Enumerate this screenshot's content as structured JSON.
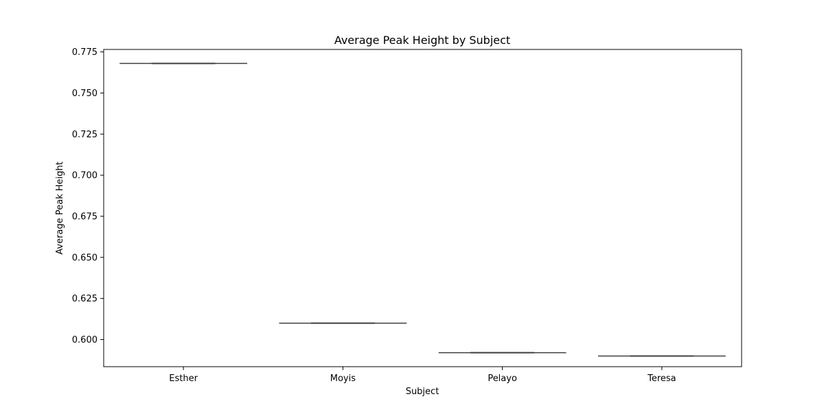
{
  "chart_data": {
    "type": "box",
    "title": "Average Peak Height by Subject",
    "xlabel": "Subject",
    "ylabel": "Average Peak Height",
    "categories": [
      "Esther",
      "Moyis",
      "Pelayo",
      "Teresa"
    ],
    "values": [
      0.768,
      0.61,
      0.592,
      0.59
    ],
    "ylim": [
      0.5835,
      0.7765
    ],
    "yticks": [
      0.6,
      0.625,
      0.65,
      0.675,
      0.7,
      0.725,
      0.75,
      0.775
    ],
    "ytick_labels": [
      "0.600",
      "0.625",
      "0.650",
      "0.675",
      "0.700",
      "0.725",
      "0.750",
      "0.775"
    ],
    "grid": false,
    "colors": {
      "box_line": "#3f3f3f",
      "axes": "#000000"
    }
  }
}
